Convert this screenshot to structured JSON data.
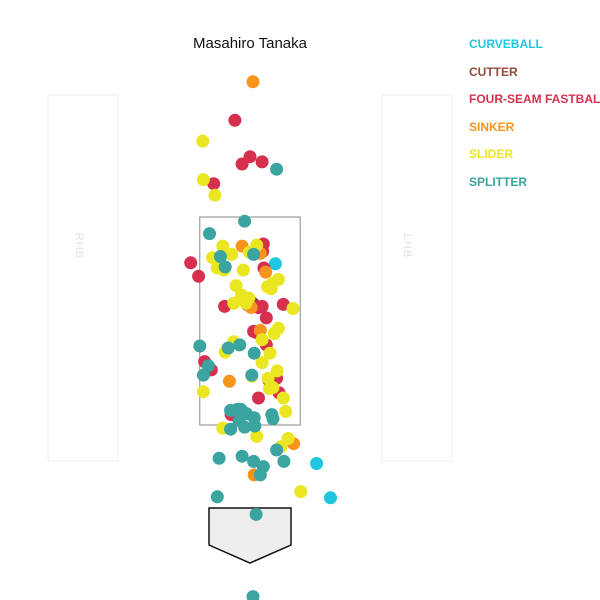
{
  "chart_data": {
    "type": "scatter",
    "title": "Masahiro Tanaka",
    "side_labels": {
      "left": "RHB",
      "right": "LHB"
    },
    "xlim": [
      -2.5,
      2.5
    ],
    "ylim": [
      0,
      5
    ],
    "strike_zone": {
      "x": [
        -0.83,
        0.83
      ],
      "y": [
        1.5,
        3.5
      ]
    },
    "legend_position": "top-right",
    "series": [
      {
        "name": "CURVEBALL",
        "color": "#1fc6e0",
        "points": [
          [
            0.42,
            3.05
          ],
          [
            1.1,
            1.13
          ],
          [
            1.33,
            0.8
          ]
        ]
      },
      {
        "name": "CUTTER",
        "color": "#96473c",
        "points": [
          [
            0.05,
            2.67
          ]
        ]
      },
      {
        "name": "FOUR-SEAM FASTBALL",
        "color": "#d6304e",
        "points": [
          [
            -0.25,
            4.43
          ],
          [
            0.0,
            4.08
          ],
          [
            0.2,
            4.03
          ],
          [
            -0.13,
            4.01
          ],
          [
            -0.6,
            3.82
          ],
          [
            0.22,
            3.24
          ],
          [
            0.1,
            3.18
          ],
          [
            0.21,
            3.17
          ],
          [
            0.23,
            3.01
          ],
          [
            -0.98,
            3.06
          ],
          [
            -0.85,
            2.93
          ],
          [
            0.55,
            2.66
          ],
          [
            -0.42,
            2.64
          ],
          [
            -0.05,
            2.66
          ],
          [
            0.2,
            2.64
          ],
          [
            0.27,
            2.53
          ],
          [
            0.14,
            2.63
          ],
          [
            0.06,
            2.4
          ],
          [
            0.1,
            2.39
          ],
          [
            -0.75,
            2.11
          ],
          [
            -0.64,
            2.03
          ],
          [
            0.31,
            1.93
          ],
          [
            0.44,
            1.95
          ],
          [
            0.48,
            1.81
          ],
          [
            0.14,
            1.76
          ],
          [
            -0.31,
            1.6
          ],
          [
            0.27,
            2.27
          ]
        ]
      },
      {
        "name": "SINKER",
        "color": "#f7941d",
        "points": [
          [
            0.05,
            4.8
          ],
          [
            -0.13,
            3.22
          ],
          [
            0.17,
            3.15
          ],
          [
            0.26,
            2.97
          ],
          [
            0.17,
            2.41
          ],
          [
            -0.34,
            1.92
          ],
          [
            0.02,
            2.63
          ],
          [
            0.72,
            1.32
          ],
          [
            0.07,
            1.02
          ]
        ]
      },
      {
        "name": "SLIDER",
        "color": "#eae622",
        "points": [
          [
            -0.78,
            4.23
          ],
          [
            -0.77,
            3.86
          ],
          [
            -0.58,
            3.71
          ],
          [
            -0.45,
            3.22
          ],
          [
            -0.3,
            3.14
          ],
          [
            -0.01,
            3.16
          ],
          [
            -0.62,
            3.11
          ],
          [
            -0.54,
            3.01
          ],
          [
            -0.43,
            2.99
          ],
          [
            -0.11,
            2.99
          ],
          [
            -0.23,
            2.84
          ],
          [
            0.37,
            2.86
          ],
          [
            0.47,
            2.9
          ],
          [
            0.29,
            2.83
          ],
          [
            -0.14,
            2.75
          ],
          [
            -0.02,
            2.72
          ],
          [
            -0.07,
            2.67
          ],
          [
            -0.27,
            2.67
          ],
          [
            0.35,
            2.81
          ],
          [
            0.47,
            2.43
          ],
          [
            -0.27,
            2.3
          ],
          [
            0.4,
            2.38
          ],
          [
            0.2,
            2.32
          ],
          [
            0.33,
            2.19
          ],
          [
            -0.41,
            2.2
          ],
          [
            0.45,
            2.02
          ],
          [
            0.2,
            2.1
          ],
          [
            0.03,
            1.97
          ],
          [
            0.32,
            1.85
          ],
          [
            0.3,
            1.95
          ],
          [
            0.38,
            1.86
          ],
          [
            0.55,
            1.76
          ],
          [
            -0.77,
            1.82
          ],
          [
            0.59,
            1.63
          ],
          [
            -0.45,
            1.47
          ],
          [
            0.11,
            1.39
          ],
          [
            0.51,
            1.29
          ],
          [
            0.63,
            1.37
          ],
          [
            0.84,
            0.86
          ],
          [
            0.71,
            2.62
          ],
          [
            0.11,
            3.23
          ]
        ]
      },
      {
        "name": "SPLITTER",
        "color": "#3ba3a0",
        "points": [
          [
            0.44,
            3.96
          ],
          [
            -0.67,
            3.34
          ],
          [
            -0.09,
            3.46
          ],
          [
            0.06,
            3.14
          ],
          [
            -0.41,
            3.02
          ],
          [
            -0.49,
            3.12
          ],
          [
            -0.83,
            2.26
          ],
          [
            -0.69,
            2.07
          ],
          [
            -0.77,
            1.98
          ],
          [
            -0.36,
            2.24
          ],
          [
            -0.17,
            2.27
          ],
          [
            0.07,
            2.19
          ],
          [
            0.03,
            1.98
          ],
          [
            -0.32,
            1.64
          ],
          [
            -0.21,
            1.65
          ],
          [
            -0.15,
            1.65
          ],
          [
            -0.06,
            1.61
          ],
          [
            0.07,
            1.57
          ],
          [
            -0.18,
            1.54
          ],
          [
            -0.09,
            1.48
          ],
          [
            0.08,
            1.49
          ],
          [
            0.38,
            1.56
          ],
          [
            0.36,
            1.6
          ],
          [
            -0.32,
            1.46
          ],
          [
            -0.51,
            1.18
          ],
          [
            -0.13,
            1.2
          ],
          [
            0.17,
            1.02
          ],
          [
            0.22,
            1.1
          ],
          [
            0.06,
            1.15
          ],
          [
            0.44,
            1.26
          ],
          [
            0.56,
            1.15
          ],
          [
            -0.54,
            0.81
          ],
          [
            0.1,
            0.64
          ],
          [
            0.05,
            -0.15
          ]
        ]
      }
    ]
  }
}
